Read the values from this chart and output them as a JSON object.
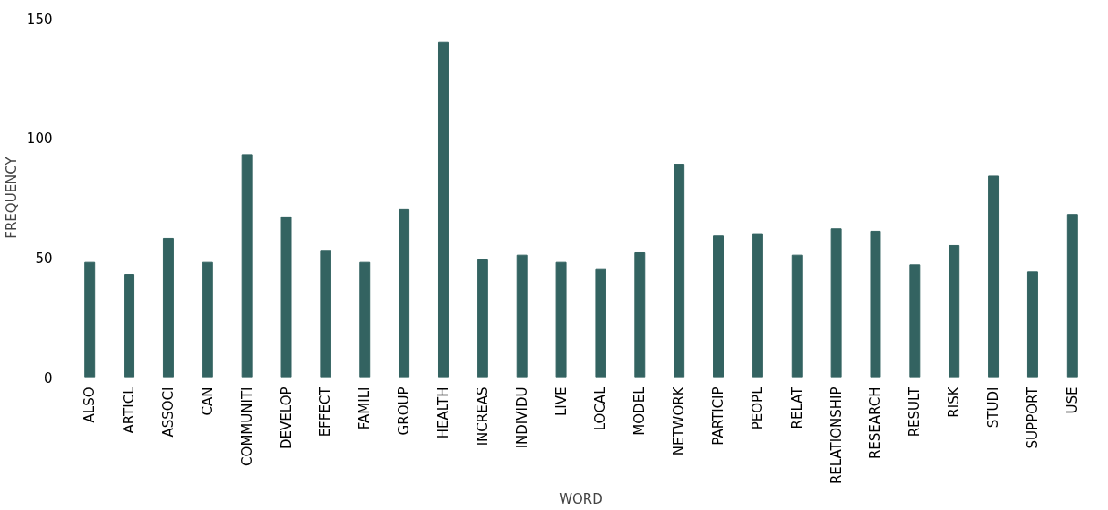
{
  "chart_data": {
    "type": "bar",
    "xlabel": "WORD",
    "ylabel": "FREQUENCY",
    "categories": [
      "ALSO",
      "ARTICL",
      "ASSOCI",
      "CAN",
      "COMMUNITI",
      "DEVELOP",
      "EFFECT",
      "FAMILI",
      "GROUP",
      "HEALTH",
      "INCREAS",
      "INDIVIDU",
      "LIVE",
      "LOCAL",
      "MODEL",
      "NETWORK",
      "PARTICIP",
      "PEOPL",
      "RELAT",
      "RELATIONSHIP",
      "RESEARCH",
      "RESULT",
      "RISK",
      "STUDI",
      "SUPPORT",
      "USE"
    ],
    "values": [
      48,
      43,
      58,
      48,
      93,
      67,
      53,
      48,
      70,
      140,
      49,
      51,
      48,
      45,
      52,
      89,
      59,
      60,
      51,
      62,
      61,
      47,
      55,
      84,
      44,
      68
    ],
    "color": "#336361",
    "ylim": [
      0,
      150
    ],
    "yticks": [
      0,
      50,
      100,
      150
    ],
    "grid": false
  }
}
